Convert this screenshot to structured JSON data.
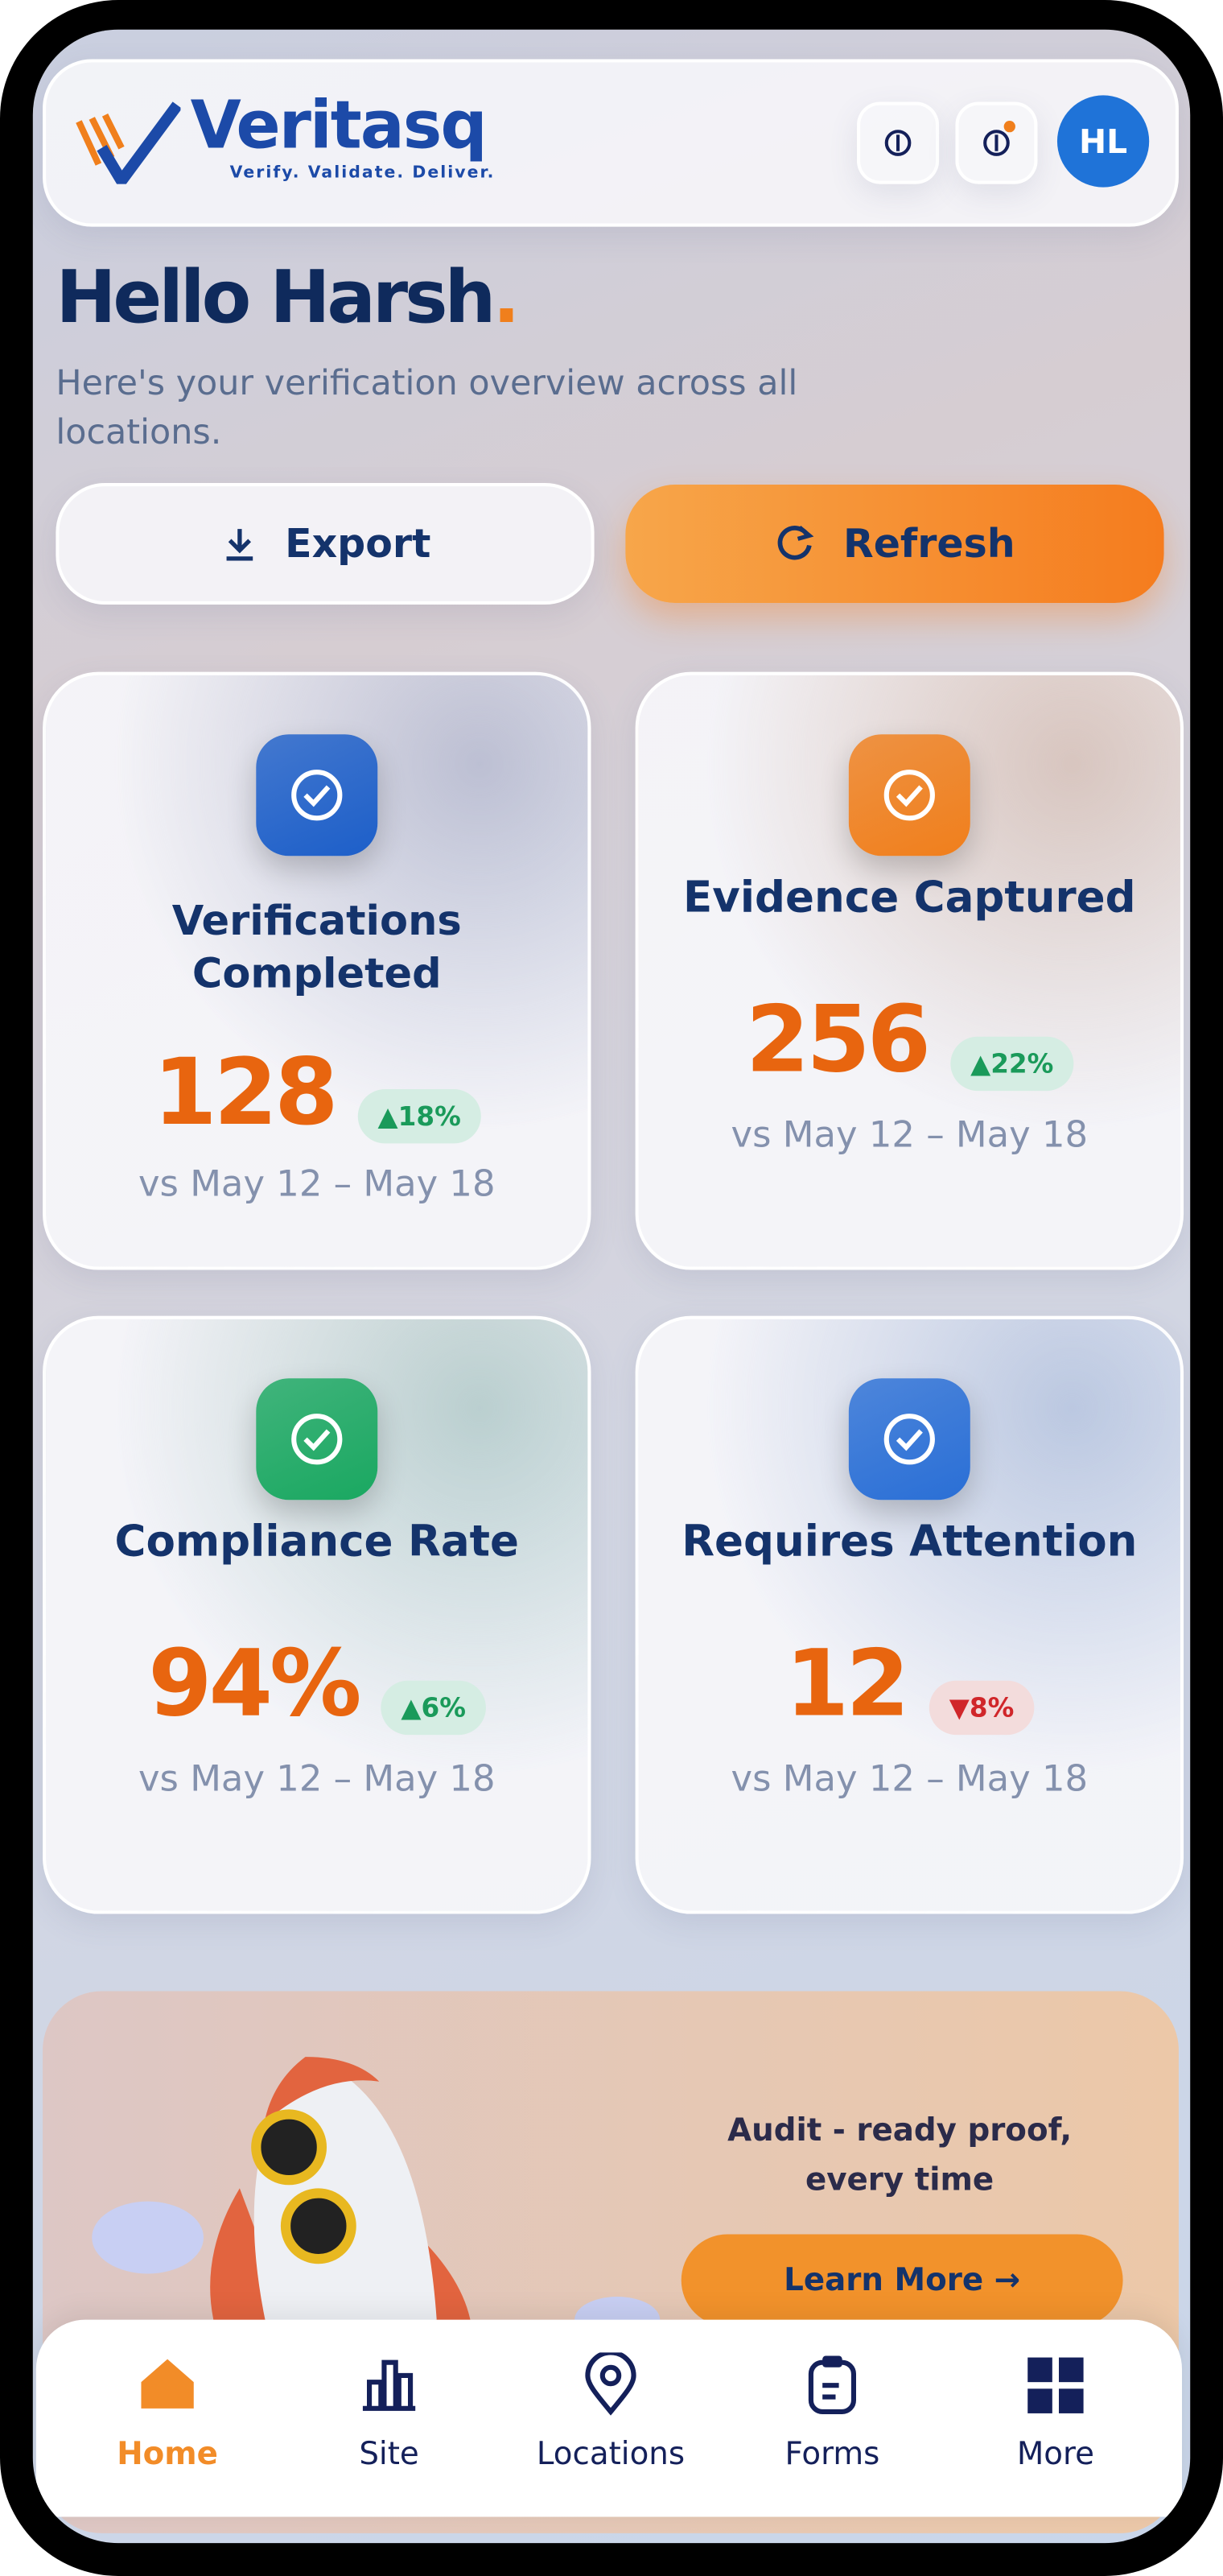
{
  "header": {
    "brand": "Veritasq",
    "tagline": "Verify. Validate. Deliver.",
    "avatar": "HL"
  },
  "greeting": {
    "title": "Hello Harsh",
    "accent": ".",
    "subtitle": "Here's your verification overview across all locations."
  },
  "actions": [
    {
      "label": "Export"
    },
    {
      "label": "Refresh"
    }
  ],
  "cards": [
    {
      "title": "Verifications Completed",
      "value": "128",
      "change": "▲18%",
      "trend": "up",
      "comparison": "vs May 12 – May 18",
      "color": "#1d5fc9"
    },
    {
      "title": "Evidence Captured",
      "value": "256",
      "change": "▲22%",
      "trend": "up",
      "comparison": "vs May 12 – May 18",
      "color": "#f07f1c"
    },
    {
      "title": "Compliance Rate",
      "value": "94%",
      "change": "▲6%",
      "trend": "up",
      "comparison": "vs May 12 – May 18",
      "color": "#1aa861"
    },
    {
      "title": "Requires Attention",
      "value": "12",
      "change": "▼8%",
      "trend": "down",
      "comparison": "vs May 12 – May 18",
      "color": "#2a6fd6"
    }
  ],
  "promo": {
    "text": "Audit - ready proof, every time",
    "button": "Learn More →"
  },
  "nav": [
    {
      "label": "Home",
      "active": true
    },
    {
      "label": "Site"
    },
    {
      "label": "Locations"
    },
    {
      "label": "Forms"
    },
    {
      "label": "More"
    }
  ]
}
